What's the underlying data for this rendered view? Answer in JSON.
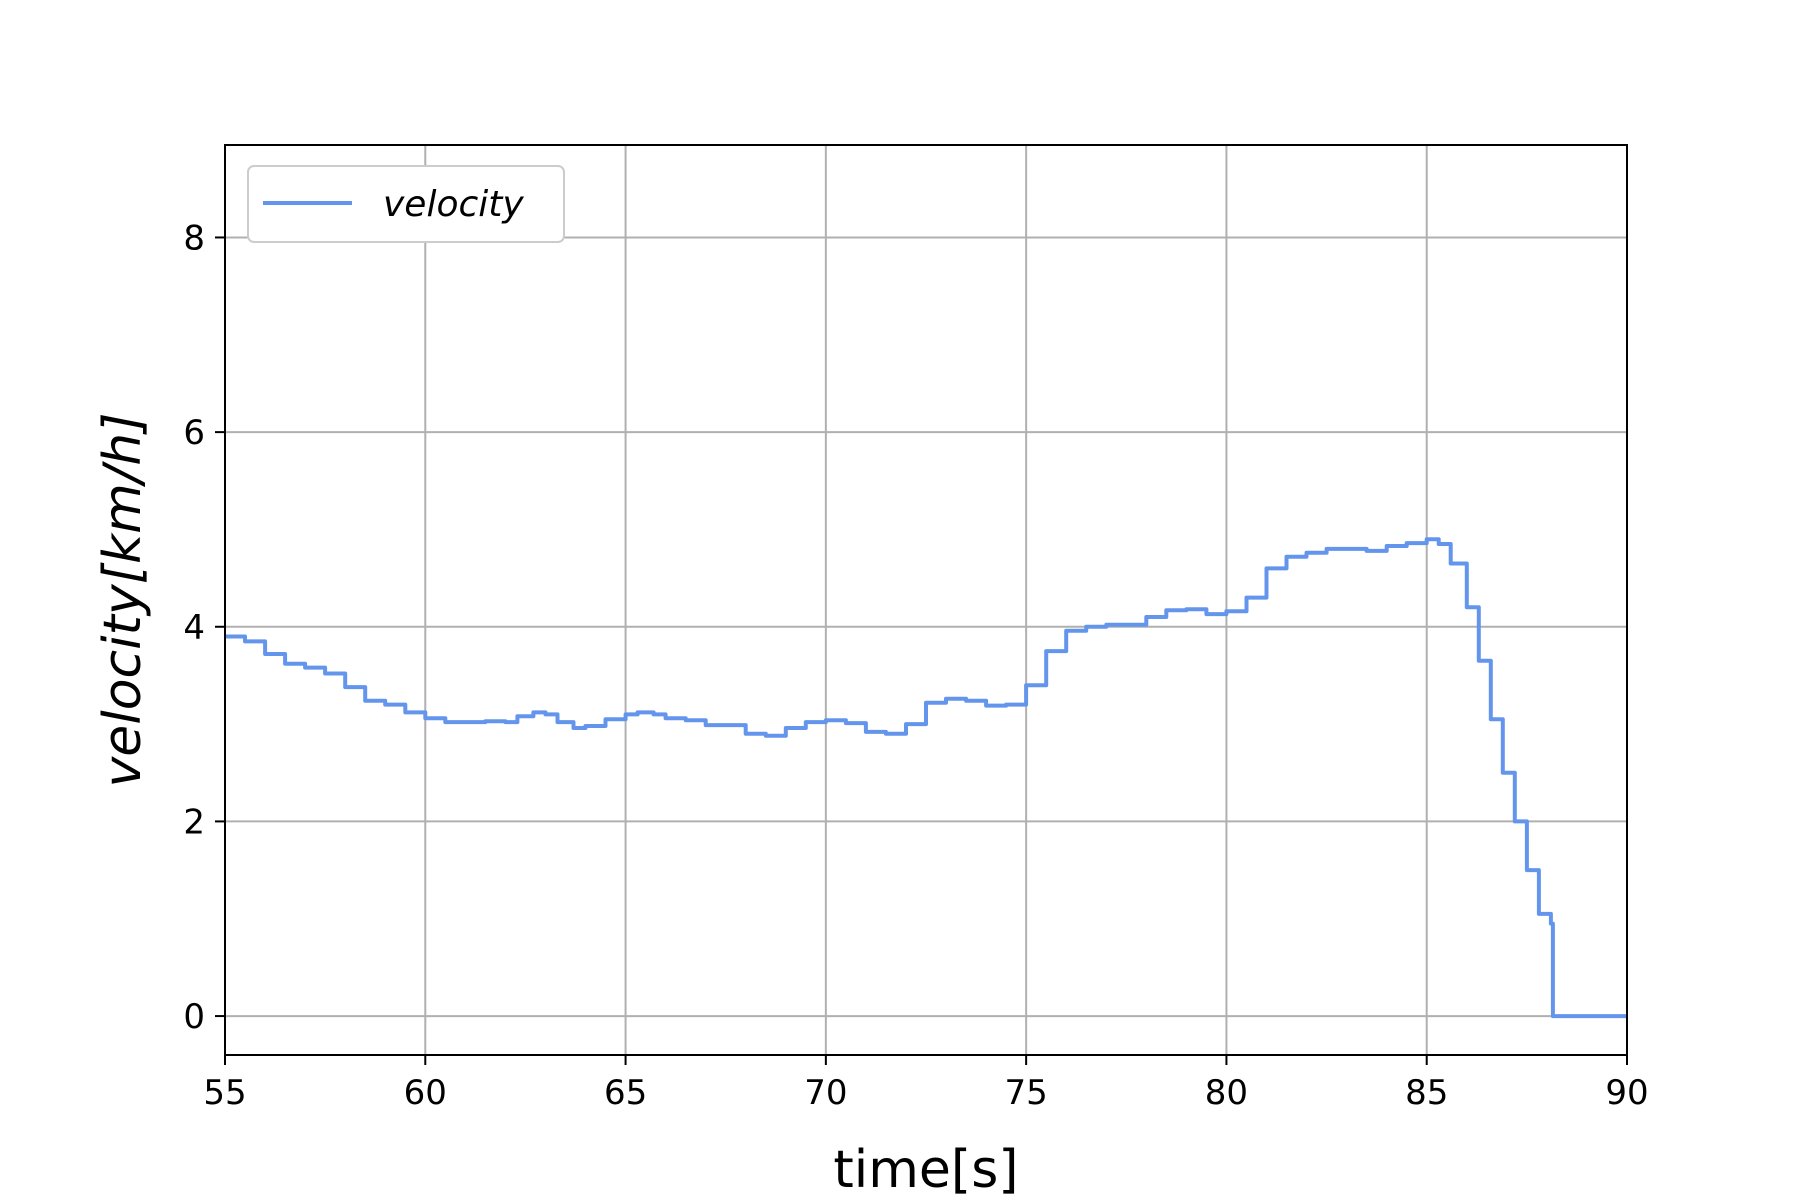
{
  "chart_data": {
    "type": "line",
    "title": "",
    "xlabel": "time[s]",
    "ylabel": "velocity[km/h]",
    "ylabel_style": "italic",
    "xlim": [
      55,
      90
    ],
    "ylim": [
      -0.4,
      8.95
    ],
    "xticks": [
      55,
      60,
      65,
      70,
      75,
      80,
      85,
      90
    ],
    "yticks": [
      0,
      2,
      4,
      6,
      8
    ],
    "grid": true,
    "legend_position": "upper-left",
    "series": [
      {
        "name": "velocity",
        "color": "#6495ED",
        "step": true,
        "x": [
          55.0,
          55.5,
          56.0,
          56.5,
          57.0,
          57.5,
          58.0,
          58.5,
          59.0,
          59.5,
          60.0,
          60.5,
          61.0,
          61.5,
          62.0,
          62.3,
          62.7,
          63.0,
          63.3,
          63.7,
          64.0,
          64.5,
          65.0,
          65.3,
          65.7,
          66.0,
          66.5,
          67.0,
          67.5,
          68.0,
          68.5,
          69.0,
          69.5,
          70.0,
          70.5,
          71.0,
          71.5,
          72.0,
          72.5,
          73.0,
          73.5,
          74.0,
          74.5,
          75.0,
          75.5,
          76.0,
          76.5,
          77.0,
          77.5,
          78.0,
          78.5,
          79.0,
          79.5,
          80.0,
          80.5,
          81.0,
          81.5,
          82.0,
          82.5,
          83.0,
          83.5,
          84.0,
          84.5,
          85.0,
          85.3,
          85.6,
          86.0,
          86.3,
          86.6,
          86.9,
          87.2,
          87.5,
          87.8,
          88.1,
          88.15,
          89.0,
          90.0
        ],
        "y": [
          3.9,
          3.85,
          3.72,
          3.62,
          3.58,
          3.52,
          3.38,
          3.24,
          3.2,
          3.12,
          3.06,
          3.02,
          3.02,
          3.03,
          3.02,
          3.08,
          3.12,
          3.1,
          3.02,
          2.96,
          2.98,
          3.05,
          3.1,
          3.12,
          3.1,
          3.06,
          3.04,
          2.99,
          2.99,
          2.9,
          2.88,
          2.96,
          3.02,
          3.04,
          3.01,
          2.92,
          2.9,
          3.0,
          3.22,
          3.26,
          3.24,
          3.19,
          3.2,
          3.4,
          3.75,
          3.96,
          4.0,
          4.02,
          4.02,
          4.1,
          4.17,
          4.18,
          4.13,
          4.16,
          4.3,
          4.6,
          4.72,
          4.76,
          4.8,
          4.8,
          4.78,
          4.83,
          4.86,
          4.9,
          4.85,
          4.65,
          4.2,
          3.65,
          3.05,
          2.5,
          2.0,
          1.5,
          1.05,
          0.95,
          0.0,
          0.0,
          0.0
        ]
      }
    ]
  }
}
